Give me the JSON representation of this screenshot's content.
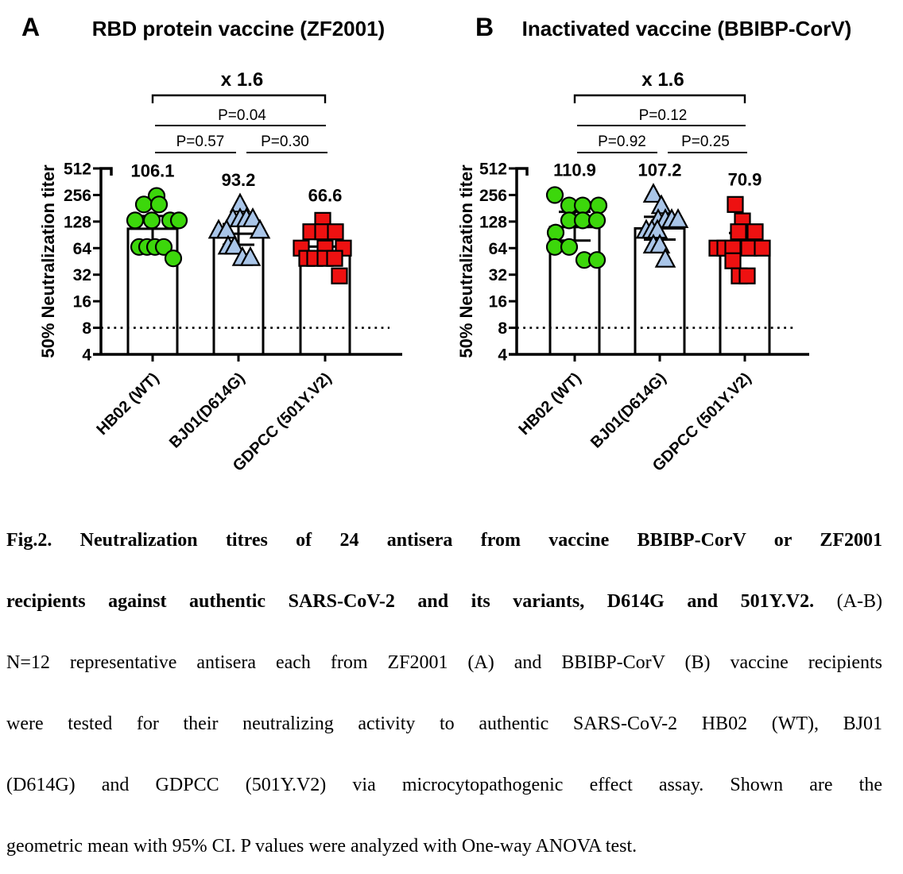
{
  "chart_data": [
    {
      "type": "bar",
      "panel_label": "A",
      "title": "RBD protein vaccine (ZF2001)",
      "ylabel": "50% Neutralization titer",
      "yscale": "log2",
      "ylim": [
        4,
        512
      ],
      "yticks": [
        512,
        256,
        128,
        64,
        32,
        16,
        8,
        4
      ],
      "dotted_line_at": 8,
      "categories": [
        "HB02 (WT)",
        "BJ01(D614G)",
        "GDPCC (501Y.V2)"
      ],
      "means": [
        106.1,
        93.2,
        66.6
      ],
      "mean_labels": [
        "106.1",
        "93.2",
        "66.6"
      ],
      "ci95": [
        [
          72,
          148
        ],
        [
          70,
          120
        ],
        [
          48,
          92
        ]
      ],
      "fold_change": "x 1.6",
      "comparisons": [
        {
          "pair": [
            0,
            2
          ],
          "label": "P=0.04"
        },
        {
          "pair": [
            0,
            1
          ],
          "label": "P=0.57"
        },
        {
          "pair": [
            1,
            2
          ],
          "label": "P=0.30"
        }
      ],
      "markers": [
        {
          "shape": "circle",
          "fill": "#3CD70B",
          "stroke": "#000000"
        },
        {
          "shape": "triangle",
          "fill": "#A9C5E8",
          "stroke": "#000000"
        },
        {
          "shape": "square",
          "fill": "#EE1111",
          "stroke": "#000000"
        }
      ],
      "points": [
        [
          [
            5,
            250
          ],
          [
            -11,
            200
          ],
          [
            8,
            200
          ],
          [
            -22,
            132
          ],
          [
            -1,
            132
          ],
          [
            22,
            132
          ],
          [
            33,
            132
          ],
          [
            -17,
            66
          ],
          [
            -7,
            66
          ],
          [
            3,
            66
          ],
          [
            14,
            66
          ],
          [
            26,
            49
          ]
        ],
        [
          [
            2,
            198
          ],
          [
            -7,
            135
          ],
          [
            2,
            135
          ],
          [
            10,
            135
          ],
          [
            18,
            135
          ],
          [
            -25,
            100
          ],
          [
            -15,
            100
          ],
          [
            27,
            100
          ],
          [
            -13,
            66
          ],
          [
            -5,
            66
          ],
          [
            5,
            49
          ],
          [
            15,
            49
          ]
        ],
        [
          [
            -3,
            132
          ],
          [
            -18,
            98
          ],
          [
            -3,
            98
          ],
          [
            13,
            98
          ],
          [
            -30,
            64
          ],
          [
            0,
            64
          ],
          [
            23,
            64
          ],
          [
            -23,
            49
          ],
          [
            -13,
            49
          ],
          [
            0,
            49
          ],
          [
            12,
            49
          ],
          [
            18,
            31
          ]
        ]
      ]
    },
    {
      "type": "bar",
      "panel_label": "B",
      "title": "Inactivated vaccine (BBIBP-CorV)",
      "ylabel": "50% Neutralization titer",
      "yscale": "log2",
      "ylim": [
        4,
        512
      ],
      "yticks": [
        512,
        256,
        128,
        64,
        32,
        16,
        8,
        4
      ],
      "dotted_line_at": 8,
      "categories": [
        "HB02 (WT)",
        "BJ01(D614G)",
        "GDPCC (501Y.V2)"
      ],
      "means": [
        110.9,
        107.2,
        70.9
      ],
      "mean_labels": [
        "110.9",
        "107.2",
        "70.9"
      ],
      "ci95": [
        [
          78,
          165
        ],
        [
          80,
          145
        ],
        [
          55,
          95
        ]
      ],
      "fold_change": "x 1.6",
      "comparisons": [
        {
          "pair": [
            0,
            2
          ],
          "label": "P=0.12"
        },
        {
          "pair": [
            0,
            1
          ],
          "label": "P=0.92"
        },
        {
          "pair": [
            1,
            2
          ],
          "label": "P=0.25"
        }
      ],
      "markers": [
        {
          "shape": "circle",
          "fill": "#3CD70B",
          "stroke": "#000000"
        },
        {
          "shape": "triangle",
          "fill": "#A9C5E8",
          "stroke": "#000000"
        },
        {
          "shape": "square",
          "fill": "#EE1111",
          "stroke": "#000000"
        }
      ],
      "points": [
        [
          [
            -25,
            256
          ],
          [
            -7,
            195
          ],
          [
            10,
            195
          ],
          [
            30,
            195
          ],
          [
            -7,
            132
          ],
          [
            10,
            132
          ],
          [
            28,
            132
          ],
          [
            -24,
            96
          ],
          [
            -25,
            66
          ],
          [
            -7,
            66
          ],
          [
            12,
            47
          ],
          [
            28,
            47
          ]
        ],
        [
          [
            -8,
            256
          ],
          [
            2,
            190
          ],
          [
            -2,
            132
          ],
          [
            7,
            132
          ],
          [
            15,
            132
          ],
          [
            23,
            132
          ],
          [
            -17,
            100
          ],
          [
            -10,
            100
          ],
          [
            -3,
            100
          ],
          [
            -8,
            68
          ],
          [
            0,
            68
          ],
          [
            7,
            47
          ]
        ],
        [
          [
            -12,
            200
          ],
          [
            -3,
            130
          ],
          [
            -8,
            98
          ],
          [
            13,
            98
          ],
          [
            -35,
            64
          ],
          [
            -25,
            64
          ],
          [
            -15,
            64
          ],
          [
            5,
            64
          ],
          [
            22,
            64
          ],
          [
            -15,
            46
          ],
          [
            -7,
            31
          ],
          [
            3,
            31
          ]
        ]
      ]
    }
  ],
  "caption": {
    "line1_bold": "Fig.2. Neutralization titres of 24 antisera from vaccine BBIBP-CorV or ZF2001",
    "line2_bold": "recipients against authentic SARS-CoV-2 and its variants, D614G and 501Y.V2.",
    "line2_normal": " (A-B)",
    "line3": "N=12 representative antisera each from ZF2001 (A) and BBIBP-CorV (B) vaccine recipients",
    "line4": "were tested for their neutralizing activity to authentic SARS-CoV-2 HB02 (WT), BJ01",
    "line5": "(D614G) and GDPCC (501Y.V2) via microcytopathogenic effect assay. Shown are the",
    "line6": "geometric mean with 95% CI. P values were analyzed with One-way ANOVA test."
  }
}
